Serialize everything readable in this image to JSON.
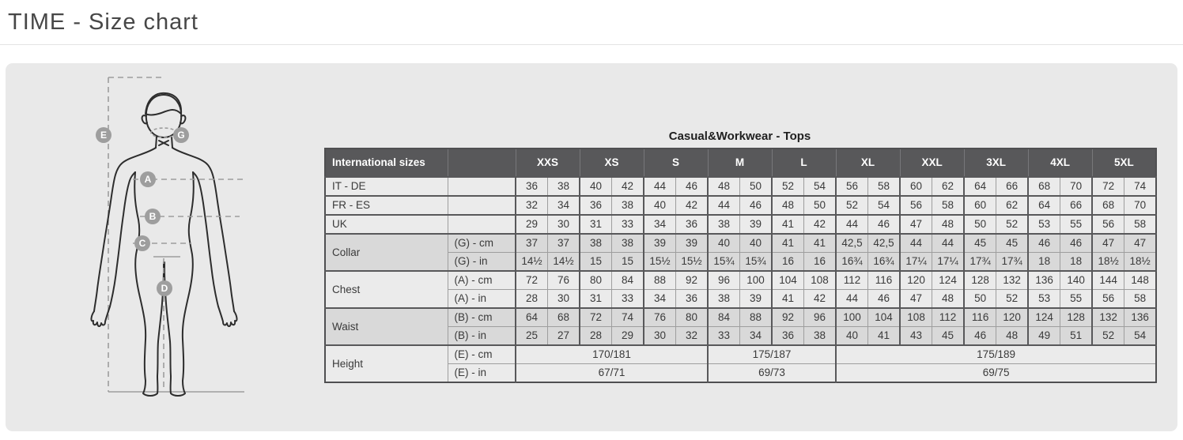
{
  "page": {
    "title": "TIME - Size chart"
  },
  "figure": {
    "badges": [
      "E",
      "G",
      "A",
      "B",
      "C",
      "D"
    ]
  },
  "table": {
    "title": "Casual&Workwear - Tops",
    "corner_label": "International sizes",
    "size_groups": [
      "XXS",
      "XS",
      "S",
      "M",
      "L",
      "XL",
      "XXL",
      "3XL",
      "4XL",
      "5XL"
    ],
    "groups": [
      {
        "label": "IT - DE",
        "shade": "light",
        "rows": [
          {
            "sub": "",
            "cells": [
              "36",
              "38",
              "40",
              "42",
              "44",
              "46",
              "48",
              "50",
              "52",
              "54",
              "56",
              "58",
              "60",
              "62",
              "64",
              "66",
              "68",
              "70",
              "72",
              "74"
            ]
          }
        ]
      },
      {
        "label": "FR - ES",
        "shade": "light",
        "rows": [
          {
            "sub": "",
            "cells": [
              "32",
              "34",
              "36",
              "38",
              "40",
              "42",
              "44",
              "46",
              "48",
              "50",
              "52",
              "54",
              "56",
              "58",
              "60",
              "62",
              "64",
              "66",
              "68",
              "70"
            ]
          }
        ]
      },
      {
        "label": "UK",
        "shade": "light",
        "rows": [
          {
            "sub": "",
            "cells": [
              "29",
              "30",
              "31",
              "33",
              "34",
              "36",
              "38",
              "39",
              "41",
              "42",
              "44",
              "46",
              "47",
              "48",
              "50",
              "52",
              "53",
              "55",
              "56",
              "58"
            ]
          }
        ]
      },
      {
        "label": "Collar",
        "shade": "dark",
        "rows": [
          {
            "sub": "(G) - cm",
            "cells": [
              "37",
              "37",
              "38",
              "38",
              "39",
              "39",
              "40",
              "40",
              "41",
              "41",
              "42,5",
              "42,5",
              "44",
              "44",
              "45",
              "45",
              "46",
              "46",
              "47",
              "47"
            ]
          },
          {
            "sub": "(G) - in",
            "cells": [
              "14½",
              "14½",
              "15",
              "15",
              "15½",
              "15½",
              "15¾",
              "15¾",
              "16",
              "16",
              "16¾",
              "16¾",
              "17¼",
              "17¼",
              "17¾",
              "17¾",
              "18",
              "18",
              "18½",
              "18½"
            ]
          }
        ]
      },
      {
        "label": "Chest",
        "shade": "light",
        "rows": [
          {
            "sub": "(A) - cm",
            "cells": [
              "72",
              "76",
              "80",
              "84",
              "88",
              "92",
              "96",
              "100",
              "104",
              "108",
              "112",
              "116",
              "120",
              "124",
              "128",
              "132",
              "136",
              "140",
              "144",
              "148"
            ]
          },
          {
            "sub": "(A) - in",
            "cells": [
              "28",
              "30",
              "31",
              "33",
              "34",
              "36",
              "38",
              "39",
              "41",
              "42",
              "44",
              "46",
              "47",
              "48",
              "50",
              "52",
              "53",
              "55",
              "56",
              "58"
            ]
          }
        ]
      },
      {
        "label": "Waist",
        "shade": "dark",
        "rows": [
          {
            "sub": "(B) - cm",
            "cells": [
              "64",
              "68",
              "72",
              "74",
              "76",
              "80",
              "84",
              "88",
              "92",
              "96",
              "100",
              "104",
              "108",
              "112",
              "116",
              "120",
              "124",
              "128",
              "132",
              "136"
            ]
          },
          {
            "sub": "(B) - in",
            "cells": [
              "25",
              "27",
              "28",
              "29",
              "30",
              "32",
              "33",
              "34",
              "36",
              "38",
              "40",
              "41",
              "43",
              "45",
              "46",
              "48",
              "49",
              "51",
              "52",
              "54"
            ]
          }
        ]
      },
      {
        "label": "Height",
        "shade": "light",
        "rows": [
          {
            "sub": "(E) - cm",
            "cells": [
              {
                "v": "170/181",
                "span": 6
              },
              {
                "v": "175/187",
                "span": 4
              },
              {
                "v": "175/189",
                "span": 10
              }
            ]
          },
          {
            "sub": "(E) - in",
            "cells": [
              {
                "v": "67/71",
                "span": 6
              },
              {
                "v": "69/73",
                "span": 4
              },
              {
                "v": "69/75",
                "span": 10
              }
            ]
          }
        ]
      }
    ]
  }
}
